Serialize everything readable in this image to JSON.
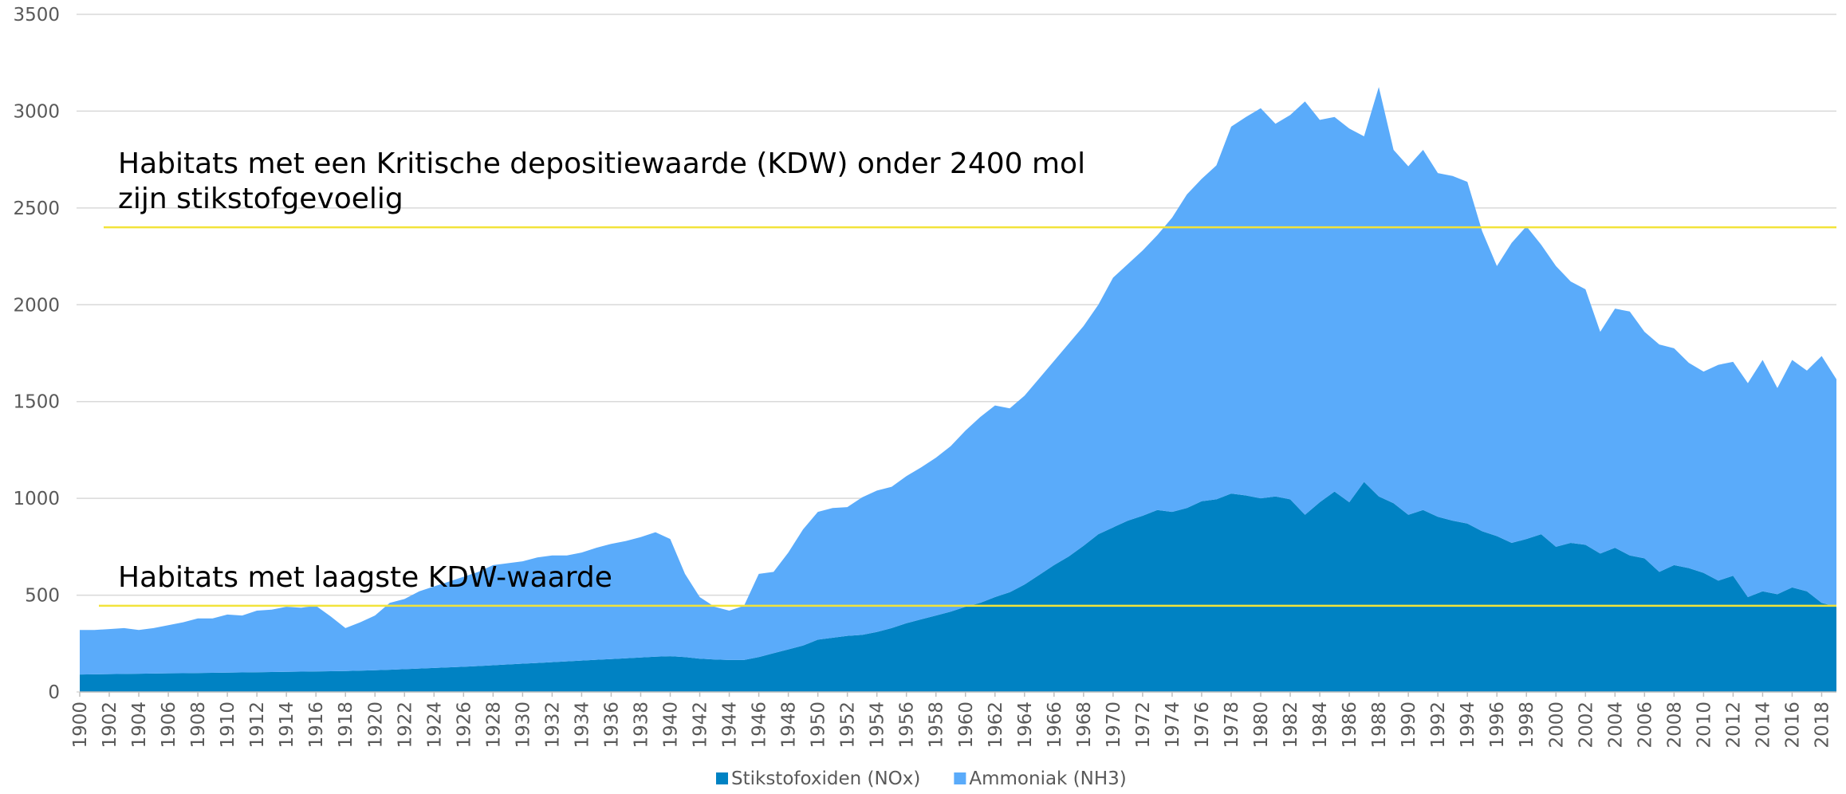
{
  "chart_data": {
    "type": "stacked_area",
    "x": [
      1900,
      1901,
      1902,
      1903,
      1904,
      1905,
      1906,
      1907,
      1908,
      1909,
      1910,
      1911,
      1912,
      1913,
      1914,
      1915,
      1916,
      1917,
      1918,
      1919,
      1920,
      1921,
      1922,
      1923,
      1924,
      1925,
      1926,
      1927,
      1928,
      1929,
      1930,
      1931,
      1932,
      1933,
      1934,
      1935,
      1936,
      1937,
      1938,
      1939,
      1940,
      1941,
      1942,
      1943,
      1944,
      1945,
      1946,
      1947,
      1948,
      1949,
      1950,
      1951,
      1952,
      1953,
      1954,
      1955,
      1956,
      1957,
      1958,
      1959,
      1960,
      1961,
      1962,
      1963,
      1964,
      1965,
      1966,
      1967,
      1968,
      1969,
      1970,
      1971,
      1972,
      1973,
      1974,
      1975,
      1976,
      1977,
      1978,
      1979,
      1980,
      1981,
      1982,
      1983,
      1984,
      1985,
      1986,
      1987,
      1988,
      1989,
      1990,
      1991,
      1992,
      1993,
      1994,
      1995,
      1996,
      1997,
      1998,
      1999,
      2000,
      2001,
      2002,
      2003,
      2004,
      2005,
      2006,
      2007,
      2008,
      2009,
      2010,
      2011,
      2012,
      2013,
      2014,
      2015,
      2016,
      2017,
      2018,
      2019
    ],
    "series": [
      {
        "name": "Stikstofoxiden (NOx)",
        "color": "#0082c3",
        "values": [
          90,
          91,
          92,
          93,
          94,
          95,
          96,
          97,
          98,
          99,
          100,
          101,
          102,
          103,
          104,
          105,
          106,
          107,
          108,
          110,
          112,
          115,
          118,
          121,
          124,
          127,
          130,
          134,
          138,
          142,
          146,
          150,
          154,
          158,
          162,
          166,
          170,
          174,
          178,
          182,
          185,
          180,
          172,
          168,
          165,
          165,
          180,
          200,
          220,
          240,
          270,
          280,
          290,
          295,
          310,
          330,
          355,
          375,
          395,
          415,
          440,
          460,
          490,
          515,
          555,
          605,
          655,
          700,
          755,
          815,
          850,
          885,
          910,
          940,
          930,
          950,
          985,
          995,
          1025,
          1015,
          1000,
          1010,
          995,
          915,
          980,
          1035,
          980,
          1085,
          1010,
          975,
          915,
          940,
          905,
          885,
          870,
          830,
          805,
          770,
          790,
          815,
          750,
          770,
          760,
          715,
          745,
          705,
          690,
          620,
          655,
          640,
          615,
          575,
          600,
          490,
          520,
          505,
          540,
          520,
          460,
          440
        ]
      },
      {
        "name": "Ammoniak (NH3)",
        "color": "#5aabfa",
        "values": [
          230,
          229,
          233,
          237,
          226,
          235,
          249,
          263,
          282,
          281,
          300,
          294,
          318,
          322,
          336,
          330,
          339,
          283,
          222,
          250,
          283,
          345,
          362,
          399,
          421,
          443,
          465,
          486,
          517,
          523,
          529,
          545,
          551,
          547,
          558,
          579,
          595,
          606,
          622,
          643,
          605,
          430,
          318,
          272,
          255,
          280,
          430,
          420,
          500,
          600,
          660,
          670,
          665,
          710,
          730,
          730,
          760,
          785,
          815,
          855,
          910,
          960,
          990,
          950,
          975,
          1015,
          1055,
          1100,
          1135,
          1185,
          1290,
          1325,
          1370,
          1420,
          1520,
          1620,
          1665,
          1725,
          1895,
          1955,
          2015,
          1925,
          1985,
          2135,
          1975,
          1935,
          1930,
          1785,
          2115,
          1825,
          1800,
          1860,
          1775,
          1780,
          1765,
          1550,
          1395,
          1550,
          1615,
          1495,
          1450,
          1350,
          1320,
          1145,
          1235,
          1260,
          1170,
          1175,
          1120,
          1060,
          1040,
          1115,
          1105,
          1105,
          1195,
          1065,
          1175,
          1140,
          1275,
          1175
        ]
      }
    ],
    "xlim": [
      1900,
      2019
    ],
    "xticks": [
      1900,
      1902,
      1904,
      1906,
      1908,
      1910,
      1912,
      1914,
      1916,
      1918,
      1920,
      1922,
      1924,
      1926,
      1928,
      1930,
      1932,
      1934,
      1936,
      1938,
      1940,
      1942,
      1944,
      1946,
      1948,
      1950,
      1952,
      1954,
      1956,
      1958,
      1960,
      1962,
      1964,
      1966,
      1968,
      1970,
      1972,
      1974,
      1976,
      1978,
      1980,
      1982,
      1984,
      1986,
      1988,
      1990,
      1992,
      1994,
      1996,
      1998,
      2000,
      2002,
      2004,
      2006,
      2008,
      2010,
      2012,
      2014,
      2016,
      2018
    ],
    "ylim": [
      0,
      3500
    ],
    "yticks": [
      0,
      500,
      1000,
      1500,
      2000,
      2500,
      3000,
      3500
    ],
    "grid": true,
    "legend": "bottom",
    "reference_lines": [
      {
        "value": 2400,
        "color": "#f2e33a",
        "label_lines": [
          "Habitats met een Kritische depositiewaarde (KDW) onder 2400 mol",
          "zijn stikstofgevoelig"
        ]
      },
      {
        "value": 445,
        "color": "#f2e33a",
        "label_lines": [
          "Habitats met laagste KDW-waarde"
        ]
      }
    ]
  }
}
